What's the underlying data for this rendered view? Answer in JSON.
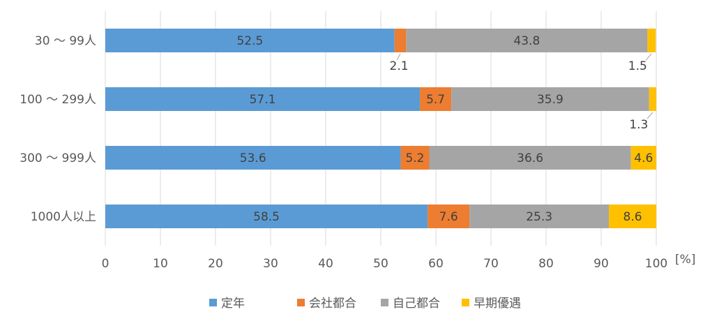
{
  "chart_data": {
    "type": "bar",
    "orientation": "horizontal",
    "stacked": true,
    "categories": [
      "30 ～ 99人",
      "100 ～ 299人",
      "300 ～ 999人",
      "1000人以上"
    ],
    "series": [
      {
        "name": "定年",
        "color": "#5b9bd5",
        "values": [
          52.5,
          57.1,
          53.6,
          58.5
        ]
      },
      {
        "name": "会社都合",
        "color": "#ed7d31",
        "values": [
          2.1,
          5.7,
          5.2,
          7.6
        ]
      },
      {
        "name": "自己都合",
        "color": "#a5a5a5",
        "values": [
          43.8,
          35.9,
          36.6,
          25.3
        ]
      },
      {
        "name": "早期優遇",
        "color": "#ffc000",
        "values": [
          1.5,
          1.3,
          4.6,
          8.6
        ]
      }
    ],
    "data_labels": [
      [
        "52.5",
        "2.1",
        "43.8",
        "1.5"
      ],
      [
        "57.1",
        "5.7",
        "35.9",
        "1.3"
      ],
      [
        "53.6",
        "5.2",
        "36.6",
        "4.6"
      ],
      [
        "58.5",
        "7.6",
        "25.3",
        "8.6"
      ]
    ],
    "xlim": [
      0,
      100
    ],
    "xticks": [
      "0",
      "10",
      "20",
      "30",
      "40",
      "50",
      "60",
      "70",
      "80",
      "90",
      "100"
    ],
    "xlabel": "[%]",
    "grid": true,
    "legend_position": "bottom"
  }
}
